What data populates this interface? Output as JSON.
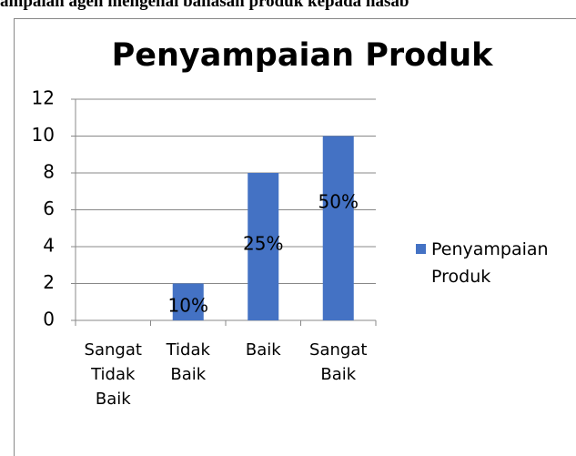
{
  "document_text": "ampaian agen mengenai bahasan produk kepada nasab",
  "chart_data": {
    "type": "bar",
    "title": "Penyampaian Produk",
    "categories": [
      "Sangat Tidak Baik",
      "Tidak Baik",
      "Baik",
      "Sangat Baik"
    ],
    "series": [
      {
        "name": "Penyampaian Produk",
        "color": "#4472c4",
        "values": [
          0,
          2,
          8,
          10
        ]
      }
    ],
    "annotations": [
      "10%",
      "25%",
      "50%"
    ],
    "ylim": [
      0,
      12
    ],
    "yticks": [
      0,
      2,
      4,
      6,
      8,
      10,
      12
    ],
    "grid": true,
    "legend": "right"
  }
}
